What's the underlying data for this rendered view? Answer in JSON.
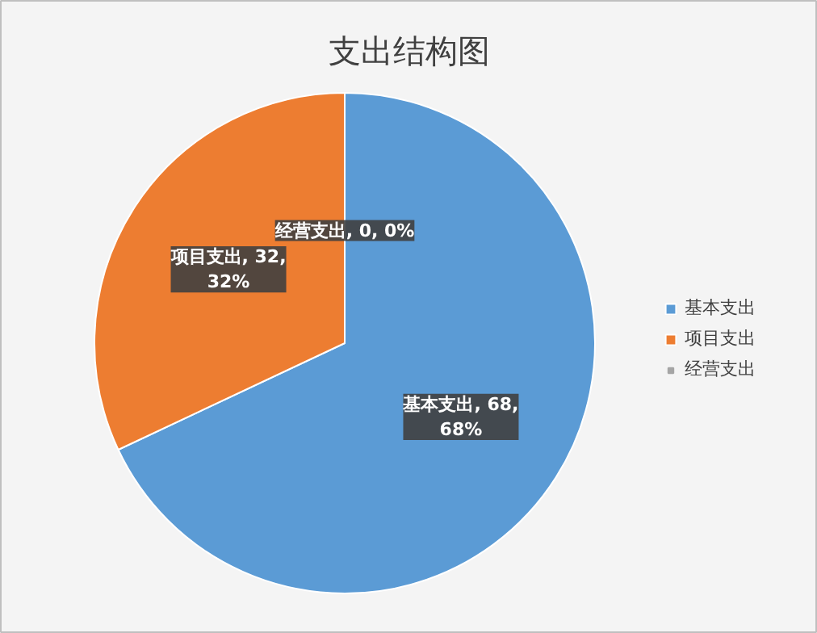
{
  "chart_data": {
    "type": "pie",
    "title": "支出结构图",
    "categories": [
      "基本支出",
      "项目支出",
      "经营支出"
    ],
    "values": [
      68,
      32,
      0
    ],
    "colors": [
      "#5b9bd5",
      "#ed7d31",
      "#a5a5a5"
    ],
    "value_labels": [
      "基本支出, 68,\n68%",
      "项目支出, 32,\n32%",
      "经营支出, 0, 0%"
    ],
    "legend": "right"
  }
}
